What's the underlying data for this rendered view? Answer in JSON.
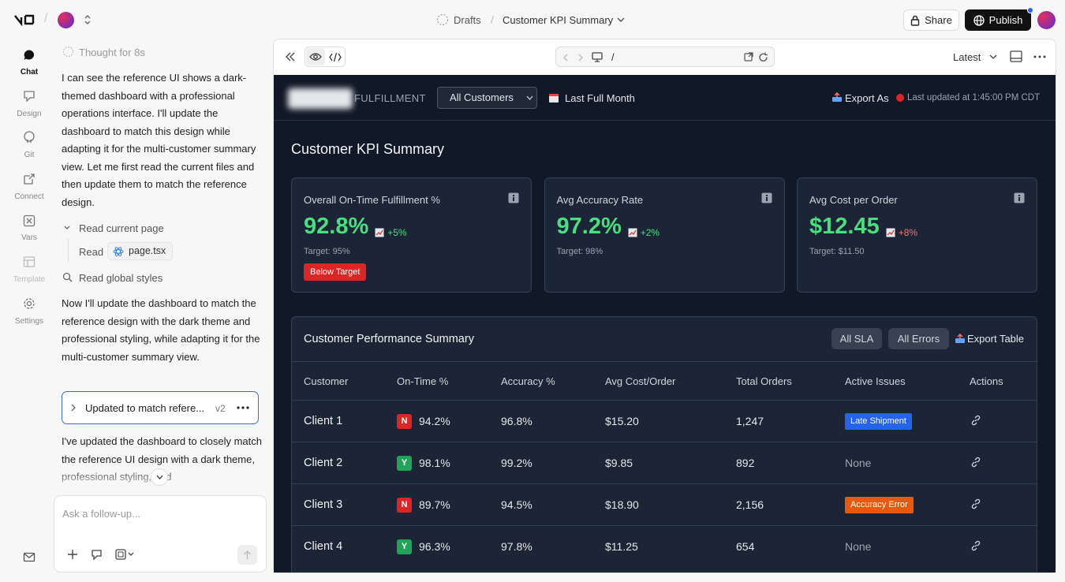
{
  "topbar": {
    "breadcrumb": [
      "Drafts",
      "Customer KPI Summary"
    ],
    "separator": "/",
    "share": "Share",
    "publish": "Publish"
  },
  "nav": [
    "Chat",
    "Design",
    "Git",
    "Connect",
    "Vars",
    "Template",
    "Settings"
  ],
  "chat": {
    "thought": "Thought for 8s",
    "messages": [
      "I can see the reference UI shows a dark-themed dashboard with a professional operations interface. I'll update the dashboard to match this design while adapting it for the multi-customer summary view. Let me first read the current files and then update them to match the reference design.",
      "Now I'll update the dashboard to match the reference design with the dark theme and professional styling, while adapting it for the multi-customer summary view.",
      "I've updated the dashboard to closely match the reference UI design with a dark theme, professional styling, and"
    ],
    "steps": {
      "read_page": "Read current page",
      "read_label": "Read",
      "file": "page.tsx",
      "read_styles": "Read global styles"
    },
    "version": {
      "title": "Updated to match refere...",
      "tag": "v2"
    },
    "input_placeholder": "Ask a follow-up..."
  },
  "preview": {
    "path": "/",
    "version": "Latest"
  },
  "dashboard": {
    "brand": "FULFILLMENT",
    "customer_filter": "All Customers",
    "period": "Last Full Month",
    "export": "Export As",
    "updated": "Last updated at 1:45:00 PM CDT",
    "title": "Customer KPI Summary",
    "kpis": [
      {
        "label": "Overall On-Time Fulfillment %",
        "value": "92.8%",
        "change": "+5%",
        "change_color": "#4ade80",
        "target": "Target: 95%",
        "badge": "Below Target"
      },
      {
        "label": "Avg Accuracy Rate",
        "value": "97.2%",
        "change": "+2%",
        "change_color": "#4ade80",
        "target": "Target: 98%"
      },
      {
        "label": "Avg Cost per Order",
        "value": "$12.45",
        "change": "+8%",
        "change_color": "#f87171",
        "target": "Target: $11.50"
      }
    ],
    "table": {
      "title": "Customer Performance Summary",
      "filters": [
        "All SLA",
        "All Errors"
      ],
      "export": "Export Table",
      "columns": [
        "Customer",
        "On-Time %",
        "Accuracy %",
        "Avg Cost/Order",
        "Total Orders",
        "Active Issues",
        "Actions"
      ],
      "rows": [
        {
          "customer": "Client 1",
          "status": "N",
          "status_color": "#dc2626",
          "on_time": "94.2%",
          "accuracy": "96.8%",
          "cost": "$15.20",
          "orders": "1,247",
          "issue": "Late Shipment",
          "issue_color": "#2563eb"
        },
        {
          "customer": "Client 2",
          "status": "Y",
          "status_color": "#22a35a",
          "on_time": "98.1%",
          "accuracy": "99.2%",
          "cost": "$9.85",
          "orders": "892",
          "issue": "None"
        },
        {
          "customer": "Client 3",
          "status": "N",
          "status_color": "#dc2626",
          "on_time": "89.7%",
          "accuracy": "94.5%",
          "cost": "$18.90",
          "orders": "2,156",
          "issue": "Accuracy Error",
          "issue_color": "#ea580c"
        },
        {
          "customer": "Client 4",
          "status": "Y",
          "status_color": "#22a35a",
          "on_time": "96.3%",
          "accuracy": "97.8%",
          "cost": "$11.25",
          "orders": "654",
          "issue": "None"
        }
      ]
    }
  }
}
